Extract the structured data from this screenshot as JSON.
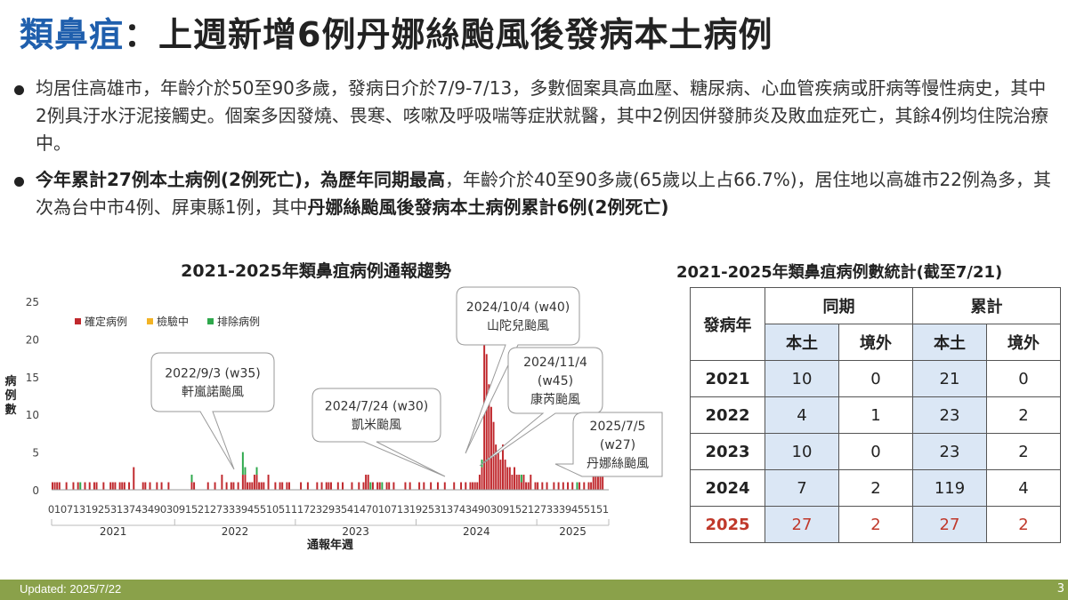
{
  "header": {
    "title_main": "類鼻疽",
    "title_sep": "：",
    "title_rest": "上週新增6例丹娜絲颱風後發病本土病例"
  },
  "bullets": {
    "b1": "均居住高雄市，年齡介於50至90多歲，發病日介於7/9-7/13，多數個案具高血壓、糖尿病、心血管疾病或肝病等慢性病史，其中2例具汙水汙泥接觸史。個案多因發燒、畏寒、咳嗽及呼吸喘等症狀就醫，其中2例因併發肺炎及敗血症死亡，其餘4例均住院治療中。",
    "b2_bold1": "今年累計27例本土病例(2例死亡)，為歷年同期最高",
    "b2_mid": "，年齡介於40至90多歲(65歲以上占66.7%)，居住地以高雄市22例為多，其次為台中市4例、屏東縣1例，其中",
    "b2_bold2": "丹娜絲颱風後發病本土病例累計6例(2例死亡)"
  },
  "chart_data": {
    "type": "bar",
    "title": "2021-2025年類鼻疽病例通報趨勢",
    "ylabel": "病例數",
    "xlabel": "通報年週",
    "ylim": [
      0,
      25
    ],
    "yticks": [
      0,
      5,
      10,
      15,
      20,
      25
    ],
    "legend": [
      "確定病例",
      "檢驗中",
      "排除病例"
    ],
    "legend_position": "top-left",
    "colors": {
      "confirmed": "#c0282d",
      "pending": "#f2b325",
      "excluded": "#2ea84c"
    },
    "years": [
      "2021",
      "2022",
      "2023",
      "2024",
      "2025"
    ],
    "weeks_per_year": [
      53,
      52,
      52,
      52,
      31
    ],
    "tick_labels": "010713192531374349030915212733394551051117232935414701071319253137434903091521273339455151",
    "confirmed": [
      [
        [
          1,
          1
        ],
        [
          2,
          1
        ],
        [
          3,
          1
        ],
        [
          4,
          1
        ],
        [
          7,
          1
        ],
        [
          10,
          1
        ],
        [
          12,
          1
        ],
        [
          15,
          1
        ],
        [
          17,
          1
        ],
        [
          19,
          1
        ],
        [
          20,
          1
        ],
        [
          23,
          1
        ],
        [
          26,
          1
        ],
        [
          27,
          1
        ],
        [
          28,
          1
        ],
        [
          30,
          1
        ],
        [
          31,
          1
        ],
        [
          32,
          1
        ],
        [
          34,
          1
        ],
        [
          36,
          3
        ],
        [
          40,
          1
        ],
        [
          41,
          1
        ],
        [
          43,
          1
        ],
        [
          46,
          1
        ],
        [
          48,
          1
        ],
        [
          51,
          1
        ]
      ],
      [
        [
          8,
          1
        ],
        [
          9,
          1
        ],
        [
          15,
          1
        ],
        [
          18,
          1
        ],
        [
          21,
          2
        ],
        [
          23,
          1
        ],
        [
          25,
          1
        ],
        [
          26,
          1
        ],
        [
          28,
          1
        ],
        [
          30,
          2
        ],
        [
          31,
          2
        ],
        [
          32,
          1
        ],
        [
          33,
          1
        ],
        [
          34,
          1
        ],
        [
          35,
          2
        ],
        [
          36,
          2
        ],
        [
          37,
          1
        ],
        [
          38,
          1
        ],
        [
          39,
          1
        ],
        [
          41,
          2
        ],
        [
          44,
          1
        ],
        [
          46,
          1
        ],
        [
          47,
          1
        ],
        [
          49,
          1
        ],
        [
          50,
          1
        ]
      ],
      [
        [
          3,
          1
        ],
        [
          6,
          1
        ],
        [
          10,
          1
        ],
        [
          12,
          1
        ],
        [
          14,
          1
        ],
        [
          15,
          1
        ],
        [
          16,
          1
        ],
        [
          19,
          1
        ],
        [
          21,
          1
        ],
        [
          25,
          1
        ],
        [
          28,
          1
        ],
        [
          30,
          1
        ],
        [
          31,
          2
        ],
        [
          32,
          2
        ],
        [
          34,
          1
        ],
        [
          36,
          1
        ],
        [
          37,
          1
        ],
        [
          40,
          1
        ],
        [
          41,
          1
        ],
        [
          43,
          1
        ],
        [
          48,
          1
        ],
        [
          50,
          1
        ]
      ],
      [
        [
          2,
          1
        ],
        [
          4,
          1
        ],
        [
          7,
          1
        ],
        [
          10,
          1
        ],
        [
          13,
          1
        ],
        [
          17,
          1
        ],
        [
          20,
          1
        ],
        [
          22,
          1
        ],
        [
          24,
          1
        ],
        [
          25,
          1
        ],
        [
          26,
          1
        ],
        [
          27,
          1
        ],
        [
          28,
          2
        ],
        [
          29,
          3
        ],
        [
          30,
          21
        ],
        [
          31,
          18
        ],
        [
          32,
          14
        ],
        [
          33,
          11
        ],
        [
          34,
          9
        ],
        [
          35,
          6
        ],
        [
          36,
          5
        ],
        [
          37,
          4
        ],
        [
          38,
          6
        ],
        [
          39,
          4
        ],
        [
          40,
          3
        ],
        [
          41,
          3
        ],
        [
          42,
          2
        ],
        [
          43,
          3
        ],
        [
          44,
          2
        ],
        [
          45,
          2
        ],
        [
          46,
          1
        ],
        [
          47,
          2
        ],
        [
          48,
          1
        ],
        [
          49,
          1
        ],
        [
          50,
          2
        ],
        [
          52,
          1
        ]
      ],
      [
        [
          1,
          1
        ],
        [
          3,
          1
        ],
        [
          5,
          1
        ],
        [
          8,
          1
        ],
        [
          10,
          1
        ],
        [
          12,
          1
        ],
        [
          14,
          1
        ],
        [
          16,
          1
        ],
        [
          19,
          1
        ],
        [
          21,
          1
        ],
        [
          23,
          1
        ],
        [
          24,
          1
        ],
        [
          25,
          2
        ],
        [
          26,
          3
        ],
        [
          27,
          6
        ],
        [
          28,
          3
        ],
        [
          29,
          2
        ]
      ]
    ],
    "excluded": [
      [
        [
          13,
          1
        ]
      ],
      [
        [
          8,
          1
        ],
        [
          30,
          3
        ],
        [
          31,
          1
        ],
        [
          36,
          1
        ]
      ],
      [
        [
          33,
          1
        ],
        [
          38,
          1
        ]
      ],
      [
        [
          29,
          1
        ],
        [
          46,
          1
        ]
      ],
      [
        [
          18,
          1
        ]
      ]
    ],
    "annotations": [
      {
        "line1": "2022/9/3 (w35)",
        "line2": "軒嵐諾颱風",
        "year": 1,
        "week": 35
      },
      {
        "line1": "2024/7/24 (w30)",
        "line2": "凱米颱風",
        "year": 3,
        "week": 30
      },
      {
        "line1": "2024/10/4 (w40)",
        "line2": "山陀兒颱風",
        "year": 3,
        "week": 40
      },
      {
        "line1": "2024/11/4",
        "line2": "(w45)",
        "line3": "康芮颱風",
        "year": 3,
        "week": 45
      },
      {
        "line1": "2025/7/5",
        "line2": "(w27)",
        "line3": "丹娜絲颱風",
        "year": 4,
        "week": 27
      }
    ]
  },
  "table": {
    "title": "2021-2025年類鼻疽病例數統計(截至7/21)",
    "h_year": "發病年",
    "h_same": "同期",
    "h_cum": "累計",
    "h_local": "本土",
    "h_imported": "境外",
    "rows": [
      {
        "year": "2021",
        "sl": "10",
        "si": "0",
        "cl": "21",
        "ci": "0"
      },
      {
        "year": "2022",
        "sl": "4",
        "si": "1",
        "cl": "23",
        "ci": "2"
      },
      {
        "year": "2023",
        "sl": "10",
        "si": "0",
        "cl": "23",
        "ci": "2"
      },
      {
        "year": "2024",
        "sl": "7",
        "si": "2",
        "cl": "119",
        "ci": "4"
      },
      {
        "year": "2025",
        "sl": "27",
        "si": "2",
        "cl": "27",
        "ci": "2"
      }
    ]
  },
  "footer": {
    "updated": "Updated: 2025/7/22",
    "page": "3"
  }
}
